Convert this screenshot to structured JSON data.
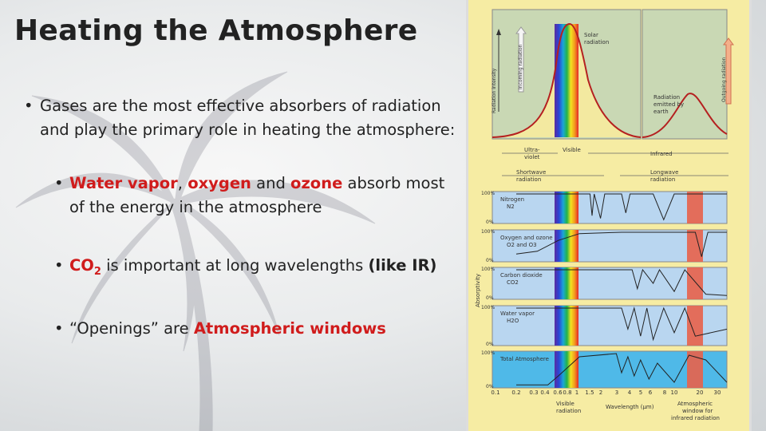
{
  "slide": {
    "title": "Heating the Atmosphere",
    "bullet1": "Gases are the most effective absorbers of radiation and play the primary role in heating the atmosphere:",
    "bullet2": {
      "t1": "Water vapor",
      "t2": ", ",
      "t3": "oxygen",
      "t4": " and ",
      "t5": "ozone",
      "t6": " absorb most of the energy in the atmosphere"
    },
    "bullet3": {
      "co": "CO",
      "sub": "2",
      "t2": " is important at long wavelengths ",
      "t3": "(like IR)"
    },
    "bullet4": {
      "t1": "“Openings” are ",
      "t2": "Atmospheric windows"
    }
  },
  "figure": {
    "incoming_radiation": "Incoming radiation",
    "outgoing_radiation": "Outgoing radiation",
    "radiation_intensity": "Radiation intensity",
    "solar_radiation_1": "Solar",
    "solar_radiation_2": "radiation",
    "earth_1": "Radiation",
    "earth_2": "emitted by",
    "earth_3": "earth",
    "ultraviolet_1": "Ultra-",
    "ultraviolet_2": "violet",
    "visible": "Visible",
    "infrared": "Infrared",
    "shortwave_1": "Shortwave",
    "shortwave_2": "radiation",
    "longwave_1": "Longwave",
    "longwave_2": "radiation",
    "absorptivity": "Absorptivity",
    "pct100": "100%",
    "pct0": "0%",
    "panels": [
      {
        "name": "Nitrogen",
        "formula": "N2"
      },
      {
        "name": "Oxygen and ozone",
        "formula": "O2 and O3"
      },
      {
        "name": "Carbon dioxide",
        "formula": "CO2"
      },
      {
        "name": "Water vapor",
        "formula": "H2O"
      },
      {
        "name": "Total Atmosphere",
        "formula": ""
      }
    ],
    "x_ticks": [
      "0.1",
      "0.2",
      "0.3",
      "0.4",
      "0.6",
      "0.8",
      "1",
      "1.5",
      "2",
      "3",
      "4",
      "5",
      "6",
      "8",
      "10",
      "20",
      "30"
    ],
    "visible_radiation_1": "Visible",
    "visible_radiation_2": "radiation",
    "wavelength": "Wavelength (µm)",
    "window_1": "Atmospheric",
    "window_2": "window for",
    "window_3": "infrared radiation"
  }
}
